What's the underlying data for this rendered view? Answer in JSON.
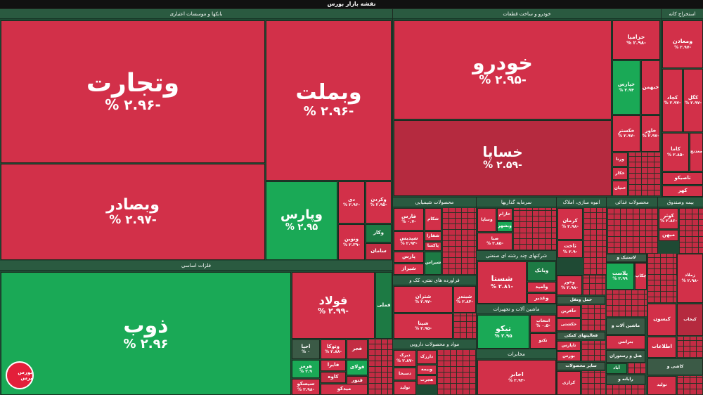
{
  "title": "نقشه بازار بورس",
  "logo_text": "بورس پرس",
  "sectors": {
    "banks": "بانکها و موسسات اعتباری",
    "auto": "خودرو و ساخت قطعات",
    "mining": "استخراج کانه",
    "basic_metals": "فلزات اساسی",
    "chemicals": "محصولات شیمیایی",
    "investment": "سرمایه گذاریها",
    "real_estate": "انبوه سازی، املاک",
    "food": "محصولات غذائی",
    "bie": "بیمه وصندوق",
    "multi": "شرکتهای چند رشته ای صنعتی",
    "oil": "فراورده های نفتی، کک و",
    "pharma": "مواد و محصولات دارویی",
    "machinery": "ماشین آلات و تجهیزات",
    "telecom": "مخابرات"
  },
  "tiles": {
    "vtejarat": {
      "name": "وتجارت",
      "change": "-۲.۹۶ %"
    },
    "vbemellat": {
      "name": "وبملت",
      "change": "-۲.۹۶ %"
    },
    "vbsader": {
      "name": "وبصادر",
      "change": "-۲.۹۷ %"
    },
    "vpars": {
      "name": "وپارس",
      "change": "۲.۹۵ %"
    },
    "di": {
      "name": "دی",
      "change": "-۲.۹۶ %"
    },
    "vkardan": {
      "name": "وکردن",
      "change": "-۲.۹۵ %"
    },
    "vnovin": {
      "name": "ونوین",
      "change": "-۲.۳۹ %"
    },
    "vkar": {
      "name": "وکار",
      "change": ""
    },
    "saman": {
      "name": "سامان",
      "change": ""
    },
    "khodro": {
      "name": "خودرو",
      "change": "-۲.۹۵ %"
    },
    "khapa": {
      "name": "خساپا",
      "change": "-۲.۵۹ %"
    },
    "kharamia": {
      "name": "خزامیا",
      "change": "-۲.۹۸ %"
    },
    "khpars": {
      "name": "خپارس",
      "change": "۲.۹۴ %"
    },
    "khbahman": {
      "name": "خبهمن",
      "change": ""
    },
    "khakhtar": {
      "name": "خکستر",
      "change": "-۲.۹۷ %"
    },
    "khavar": {
      "name": "خاور",
      "change": "-۲.۹۷ %"
    },
    "vorna": {
      "name": "ورنا",
      "change": ""
    },
    "khkar": {
      "name": "خکار",
      "change": ""
    },
    "khenin": {
      "name": "خنیان",
      "change": ""
    },
    "vmaaden": {
      "name": "ومعادن",
      "change": "-۲.۹۷ %"
    },
    "kgol": {
      "name": "کگل",
      "change": "-۲.۹۷ %"
    },
    "kchad": {
      "name": "کچاد",
      "change": "-۲.۹۷ %"
    },
    "kama": {
      "name": "کاما",
      "change": "-۲.۸۵ %"
    },
    "madenj": {
      "name": "معدنج",
      "change": ""
    },
    "tasiko": {
      "name": "تاصیکو",
      "change": ""
    },
    "kahar": {
      "name": "کهر",
      "change": ""
    },
    "zob": {
      "name": "ذوب",
      "change": "۲.۹۶ %"
    },
    "foolad": {
      "name": "فولاد",
      "change": "-۲.۹۹ %"
    },
    "fameli": {
      "name": "فملی",
      "change": ""
    },
    "ahya": {
      "name": "احیا",
      "change": "۰ %"
    },
    "votoka": {
      "name": "وتوکا",
      "change": "-۲.۸۸ %"
    },
    "hormoz": {
      "name": "هرمز",
      "change": "۲.۹ %"
    },
    "fajr": {
      "name": "فجر",
      "change": ""
    },
    "fakhoz": {
      "name": "فایرا",
      "change": ""
    },
    "kaveh": {
      "name": "کاوه",
      "change": ""
    },
    "fooladi": {
      "name": "فولای",
      "change": ""
    },
    "sisko": {
      "name": "سیسکو",
      "change": "-۲.۹۸ %"
    },
    "fnoor": {
      "name": "فنور",
      "change": ""
    },
    "midko": {
      "name": "میدکو",
      "change": ""
    },
    "farsi": {
      "name": "فارس",
      "change": "-۰.۷ %"
    },
    "shekham": {
      "name": "شکام",
      "change": ""
    },
    "shapdis": {
      "name": "شپدیس",
      "change": "-۲.۹۴ %"
    },
    "shafara": {
      "name": "شفارا",
      "change": ""
    },
    "zagros": {
      "name": "زاگرس",
      "change": "-۲.۹۹ %"
    },
    "paxa": {
      "name": "پاکسا",
      "change": ""
    },
    "pars": {
      "name": "پارس",
      "change": ""
    },
    "shiraz": {
      "name": "شیراز",
      "change": ""
    },
    "shiras": {
      "name": "شیراس",
      "change": ""
    },
    "vsapa": {
      "name": "وساپا",
      "change": ""
    },
    "khazam": {
      "name": "خازام",
      "change": ""
    },
    "vbeshahr": {
      "name": "وبشهر",
      "change": ""
    },
    "vbeshbe": {
      "name": "وبشهه",
      "change": "-۲.۸۵ %"
    },
    "sepa": {
      "name": "صبا",
      "change": ""
    },
    "kerman": {
      "name": "کرمان",
      "change": "-۲.۹۸ %"
    },
    "takht": {
      "name": "ثاخت",
      "change": "-۲.۹ %"
    },
    "vkhavar": {
      "name": "وخاور",
      "change": ""
    },
    "golestan": {
      "name": "گلستان",
      "change": ""
    },
    "shestan": {
      "name": "شستان",
      "change": ""
    },
    "kouhgar": {
      "name": "کوثر",
      "change": "-۲.۸۶ %"
    },
    "bime": {
      "name": "بیمه",
      "change": ""
    },
    "mehan": {
      "name": "میهن",
      "change": ""
    },
    "shosta": {
      "name": "شستا",
      "change": "-۲.۸۱ %"
    },
    "vbank": {
      "name": "وبانک",
      "change": ""
    },
    "vamid": {
      "name": "وامید",
      "change": ""
    },
    "vghadir": {
      "name": "وغدیر",
      "change": ""
    },
    "shatran": {
      "name": "شتران",
      "change": "-۲.۹۷ %"
    },
    "shabandar": {
      "name": "شبندر",
      "change": "-۲.۸۴ %"
    },
    "shina": {
      "name": "شپنا",
      "change": "-۲.۹۵ %"
    },
    "vahor": {
      "name": "وحور",
      "change": "-۲.۹۸ %"
    },
    "hamlonagl": {
      "name": "حمل ونقل",
      "change": ""
    },
    "hafarin": {
      "name": "حآفرین",
      "change": ""
    },
    "haktashi": {
      "name": "حکشتی",
      "change": ""
    },
    "plast": {
      "name": "پلاست",
      "change": "۲.۹۹ %"
    },
    "lastik": {
      "name": "لاستیک و",
      "change": ""
    },
    "chekap": {
      "name": "چکاپ",
      "change": ""
    },
    "zamlad": {
      "name": "زملاد",
      "change": "-۲.۹۸ %"
    },
    "kikhab": {
      "name": "کیخاب",
      "change": ""
    },
    "dabrak": {
      "name": "دبرک",
      "change": "-۲.۸۷ %"
    },
    "dasobhan": {
      "name": "دسبحا",
      "change": ""
    },
    "dalor": {
      "name": "دالبر",
      "change": ""
    },
    "darzak": {
      "name": "دارزک",
      "change": ""
    },
    "vbsir": {
      "name": "وبیمه",
      "change": ""
    },
    "hejrat": {
      "name": "هجرت",
      "change": ""
    },
    "tolid": {
      "name": "تولید",
      "change": ""
    },
    "tiko": {
      "name": "تیکو",
      "change": "۲.۹۵ %"
    },
    "entekhab": {
      "name": "انتخاب",
      "change": "-۰.۵ %"
    },
    "ttko": {
      "name": "تکنو",
      "change": ""
    },
    "akhaber": {
      "name": "اخابر",
      "change": "-۲.۹۳ %"
    },
    "tehran": {
      "name": "تهران",
      "change": ""
    },
    "faaliat": {
      "name": "فعالیتهای کمکی",
      "change": ""
    },
    "tapars": {
      "name": "تاپارس",
      "change": ""
    },
    "boors": {
      "name": "بورس",
      "change": ""
    },
    "sayer": {
      "name": "سایر محصولات",
      "change": ""
    },
    "karazi": {
      "name": "کرازی",
      "change": ""
    },
    "mashinalat": {
      "name": "ماشین آلات و",
      "change": ""
    },
    "betras": {
      "name": "بترانس",
      "change": ""
    },
    "hotel": {
      "name": "هتل و رستوران",
      "change": ""
    },
    "abad": {
      "name": "آباد",
      "change": ""
    },
    "rayaneh": {
      "name": "رایانه و",
      "change": ""
    },
    "kisvan": {
      "name": "کیسون",
      "change": ""
    },
    "etelaat": {
      "name": "اطلاعات",
      "change": ""
    },
    "kashi": {
      "name": "کاشی و",
      "change": ""
    },
    "tavid": {
      "name": "توليد",
      "change": ""
    },
    "kakhfan": {
      "name": "کخاک",
      "change": ""
    },
    "vnaft": {
      "name": "ونفت",
      "change": ""
    }
  }
}
